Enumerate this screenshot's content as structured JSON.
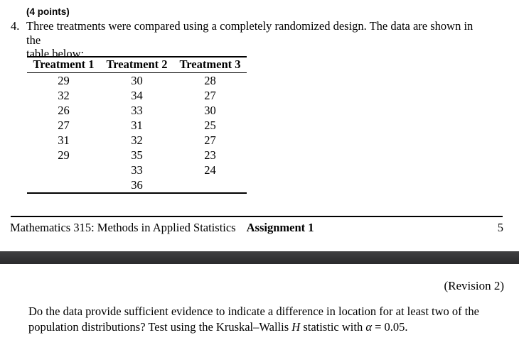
{
  "header": {
    "points": "(4 points)",
    "number": "4.",
    "intro_line1": "Three treatments were compared using a completely randomized design. The data are shown in the",
    "intro_line2": "table below:"
  },
  "table": {
    "headers": [
      "Treatment 1",
      "Treatment 2",
      "Treatment 3"
    ],
    "rows": [
      [
        "29",
        "30",
        "28"
      ],
      [
        "32",
        "34",
        "27"
      ],
      [
        "26",
        "33",
        "30"
      ],
      [
        "27",
        "31",
        "25"
      ],
      [
        "31",
        "32",
        "27"
      ],
      [
        "29",
        "35",
        "23"
      ],
      [
        "",
        "33",
        "24"
      ],
      [
        "",
        "36",
        ""
      ]
    ]
  },
  "footer": {
    "course": "Mathematics 315: Methods in Applied Statistics",
    "assignment": "Assignment 1",
    "page_number": "5"
  },
  "next_page": {
    "revision": "(Revision 2)",
    "question": {
      "line1": "Do the data provide sufficient evidence to indicate a difference in location for at least two of the",
      "line2_part1": "population distributions? Test using the Kruskal–Wallis ",
      "stat_symbol": "H",
      "line2_part2": " statistic with ",
      "alpha_symbol": "α",
      "line2_part3": " = 0.05."
    }
  },
  "colors": {
    "text": "#000000",
    "background": "#ffffff",
    "separator_bar_top": "#404042",
    "separator_bar_bottom": "#2a2a2c"
  }
}
